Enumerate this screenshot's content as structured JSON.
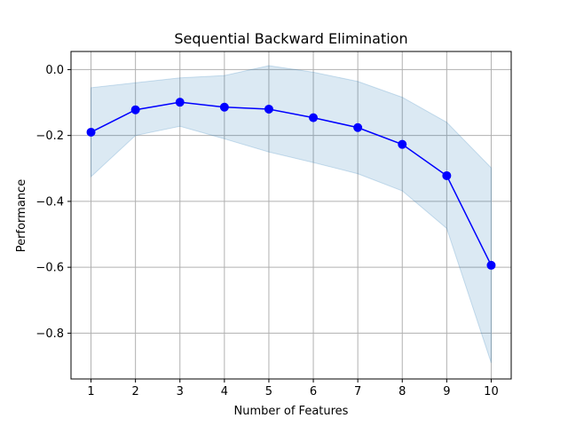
{
  "chart_data": {
    "type": "line",
    "title": "Sequential Backward Elimination",
    "xlabel": "Number of Features",
    "ylabel": "Performance",
    "x": [
      1,
      2,
      3,
      4,
      5,
      6,
      7,
      8,
      9,
      10
    ],
    "series": [
      {
        "values": [
          -0.19,
          -0.122,
          -0.099,
          -0.114,
          -0.12,
          -0.146,
          -0.176,
          -0.227,
          -0.322,
          -0.594
        ],
        "upper": [
          -0.055,
          -0.04,
          -0.025,
          -0.018,
          0.012,
          -0.008,
          -0.036,
          -0.084,
          -0.16,
          -0.298
        ],
        "lower": [
          -0.325,
          -0.2,
          -0.172,
          -0.21,
          -0.25,
          -0.282,
          -0.316,
          -0.368,
          -0.482,
          -0.89
        ],
        "color": "#0000ff",
        "band_color": "#1f77b4"
      }
    ],
    "xlim": [
      0.55,
      10.45
    ],
    "ylim": [
      -0.939,
      0.055
    ],
    "xticks": [
      1,
      2,
      3,
      4,
      5,
      6,
      7,
      8,
      9,
      10
    ],
    "yticks": [
      0.0,
      -0.2,
      -0.4,
      -0.6,
      -0.8
    ],
    "ytick_labels": [
      "0.0",
      "−0.2",
      "−0.4",
      "−0.6",
      "−0.8"
    ],
    "grid": true,
    "legend": "none"
  }
}
